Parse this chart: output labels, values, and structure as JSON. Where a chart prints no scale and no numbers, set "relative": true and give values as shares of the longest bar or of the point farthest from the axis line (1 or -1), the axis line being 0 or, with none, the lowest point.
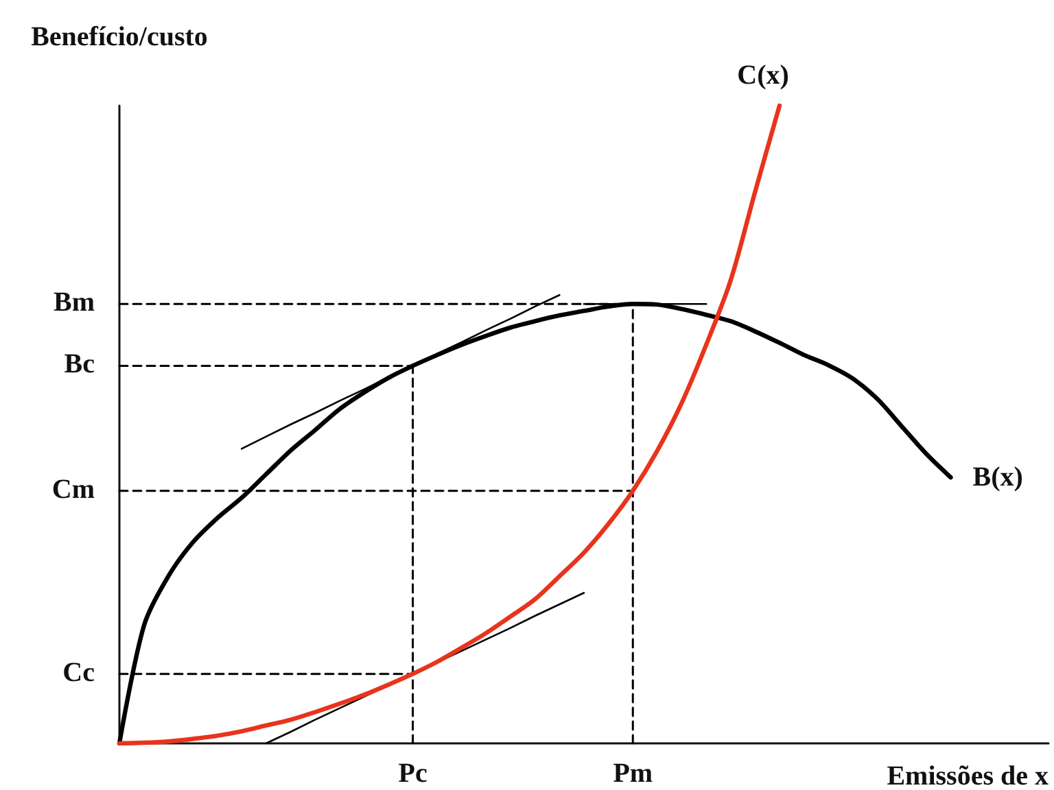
{
  "chart_data": {
    "type": "line",
    "xlabel": "Emissões de x",
    "ylabel": "Benefício/custo",
    "relative": true,
    "categories": [
      null,
      null,
      null,
      null,
      null,
      null,
      null,
      null,
      null,
      null,
      null,
      null,
      "Pc",
      null,
      null,
      null,
      null,
      null,
      null,
      null,
      null,
      "Pm",
      null,
      null,
      null,
      null,
      null,
      null,
      null,
      null,
      null,
      null,
      null,
      null,
      null,
      null,
      null,
      null,
      null
    ],
    "annotations": [
      "Bm",
      "Bc",
      "Cm",
      "Cc"
    ],
    "grid": false,
    "legend": false,
    "marker": "none",
    "series": [
      {
        "name": "B(x)",
        "color": "#000000",
        "values": [
          0,
          0.184,
          0.262,
          0.315,
          0.353,
          0.385,
          0.422,
          0.459,
          0.491,
          0.524,
          0.55,
          0.573,
          0.592,
          0.609,
          0.625,
          0.639,
          0.652,
          0.662,
          0.671,
          0.678,
          0.685,
          0.689,
          0.688,
          0.681,
          0.672,
          0.662,
          0.646,
          0.628,
          0.609,
          0.593,
          0.572,
          0.54,
          0.497,
          0.454,
          0.417,
          null,
          null,
          null,
          null
        ]
      },
      {
        "name": "C(x)",
        "color": "#e8341c",
        "values": [
          0,
          0.001,
          0.003,
          0.007,
          0.012,
          0.019,
          0.028,
          0.037,
          0.049,
          0.062,
          0.076,
          0.092,
          0.109,
          0.128,
          0.15,
          0.173,
          0.199,
          0.226,
          0.262,
          0.299,
          0.344,
          0.396,
          0.459,
          0.534,
          0.625,
          0.726,
          0.865,
          1,
          null,
          null,
          null,
          null,
          null,
          null,
          null,
          null,
          null,
          null,
          null
        ]
      },
      {
        "color": "#000000",
        "values": [
          null,
          null,
          null,
          null,
          null,
          0.462,
          0.481,
          0.5,
          0.518,
          0.537,
          0.555,
          0.574,
          0.592,
          0.611,
          0.629,
          0.648,
          0.666,
          0.685,
          0.703,
          null,
          null,
          null,
          null,
          null,
          null,
          null,
          null,
          null,
          null,
          null,
          null,
          null,
          null,
          null,
          null,
          null,
          null,
          null,
          null
        ]
      },
      {
        "color": "#000000",
        "values": [
          null,
          null,
          null,
          null,
          null,
          null,
          0,
          0.018,
          0.037,
          0.055,
          0.073,
          0.091,
          0.109,
          0.127,
          0.145,
          0.163,
          0.181,
          0.2,
          0.218,
          0.236,
          null,
          null,
          null,
          null,
          null,
          null,
          null,
          null,
          null,
          null,
          null,
          null,
          null,
          null,
          null,
          null,
          null,
          null,
          null
        ]
      },
      {
        "color": "#000000",
        "values": [
          null,
          null,
          null,
          null,
          null,
          null,
          null,
          null,
          null,
          null,
          null,
          null,
          null,
          null,
          null,
          null,
          null,
          null,
          null,
          0.689,
          0.689,
          0.689,
          0.689,
          0.689,
          0.689,
          null,
          null,
          null,
          null,
          null,
          null,
          null,
          null,
          null,
          null,
          null,
          null,
          null,
          null
        ]
      },
      {
        "color": "#000000",
        "line_style": "dashed",
        "values": [
          0.689,
          0.689,
          0.689,
          0.689,
          0.689,
          0.689,
          0.689,
          0.689,
          0.689,
          0.689,
          0.689,
          0.689,
          0.689,
          0.689,
          0.689,
          0.689,
          0.689,
          0.689,
          0.689,
          0.689,
          0.689,
          0.689,
          null,
          null,
          null,
          null,
          null,
          null,
          null,
          null,
          null,
          null,
          null,
          null,
          null,
          null,
          null,
          null,
          null
        ]
      },
      {
        "color": "#000000",
        "line_style": "dashed",
        "values": [
          0.592,
          0.592,
          0.592,
          0.592,
          0.592,
          0.592,
          0.592,
          0.592,
          0.592,
          0.592,
          0.592,
          0.592,
          0.592,
          null,
          null,
          null,
          null,
          null,
          null,
          null,
          null,
          null,
          null,
          null,
          null,
          null,
          null,
          null,
          null,
          null,
          null,
          null,
          null,
          null,
          null,
          null,
          null,
          null,
          null
        ]
      },
      {
        "color": "#000000",
        "line_style": "dashed",
        "values": [
          0.396,
          0.396,
          0.396,
          0.396,
          0.396,
          0.396,
          0.396,
          0.396,
          0.396,
          0.396,
          0.396,
          0.396,
          0.396,
          0.396,
          0.396,
          0.396,
          0.396,
          0.396,
          0.396,
          0.396,
          0.396,
          0.396,
          null,
          null,
          null,
          null,
          null,
          null,
          null,
          null,
          null,
          null,
          null,
          null,
          null,
          null,
          null,
          null,
          null
        ]
      },
      {
        "color": "#000000",
        "line_style": "dashed",
        "values": [
          0.109,
          0.109,
          0.109,
          0.109,
          0.109,
          0.109,
          0.109,
          0.109,
          0.109,
          0.109,
          0.109,
          0.109,
          0.109,
          null,
          null,
          null,
          null,
          null,
          null,
          null,
          null,
          null,
          null,
          null,
          null,
          null,
          null,
          null,
          null,
          null,
          null,
          null,
          null,
          null,
          null,
          null,
          null,
          null,
          null
        ]
      },
      {
        "color": "#000000",
        "line_style": "dashed",
        "x": [
          "Pm",
          "Pm"
        ],
        "values": [
          0,
          0.689
        ]
      },
      {
        "color": "#000000",
        "line_style": "dashed",
        "x": [
          "Pc",
          "Pc"
        ],
        "values": [
          0,
          0.592
        ]
      }
    ]
  }
}
